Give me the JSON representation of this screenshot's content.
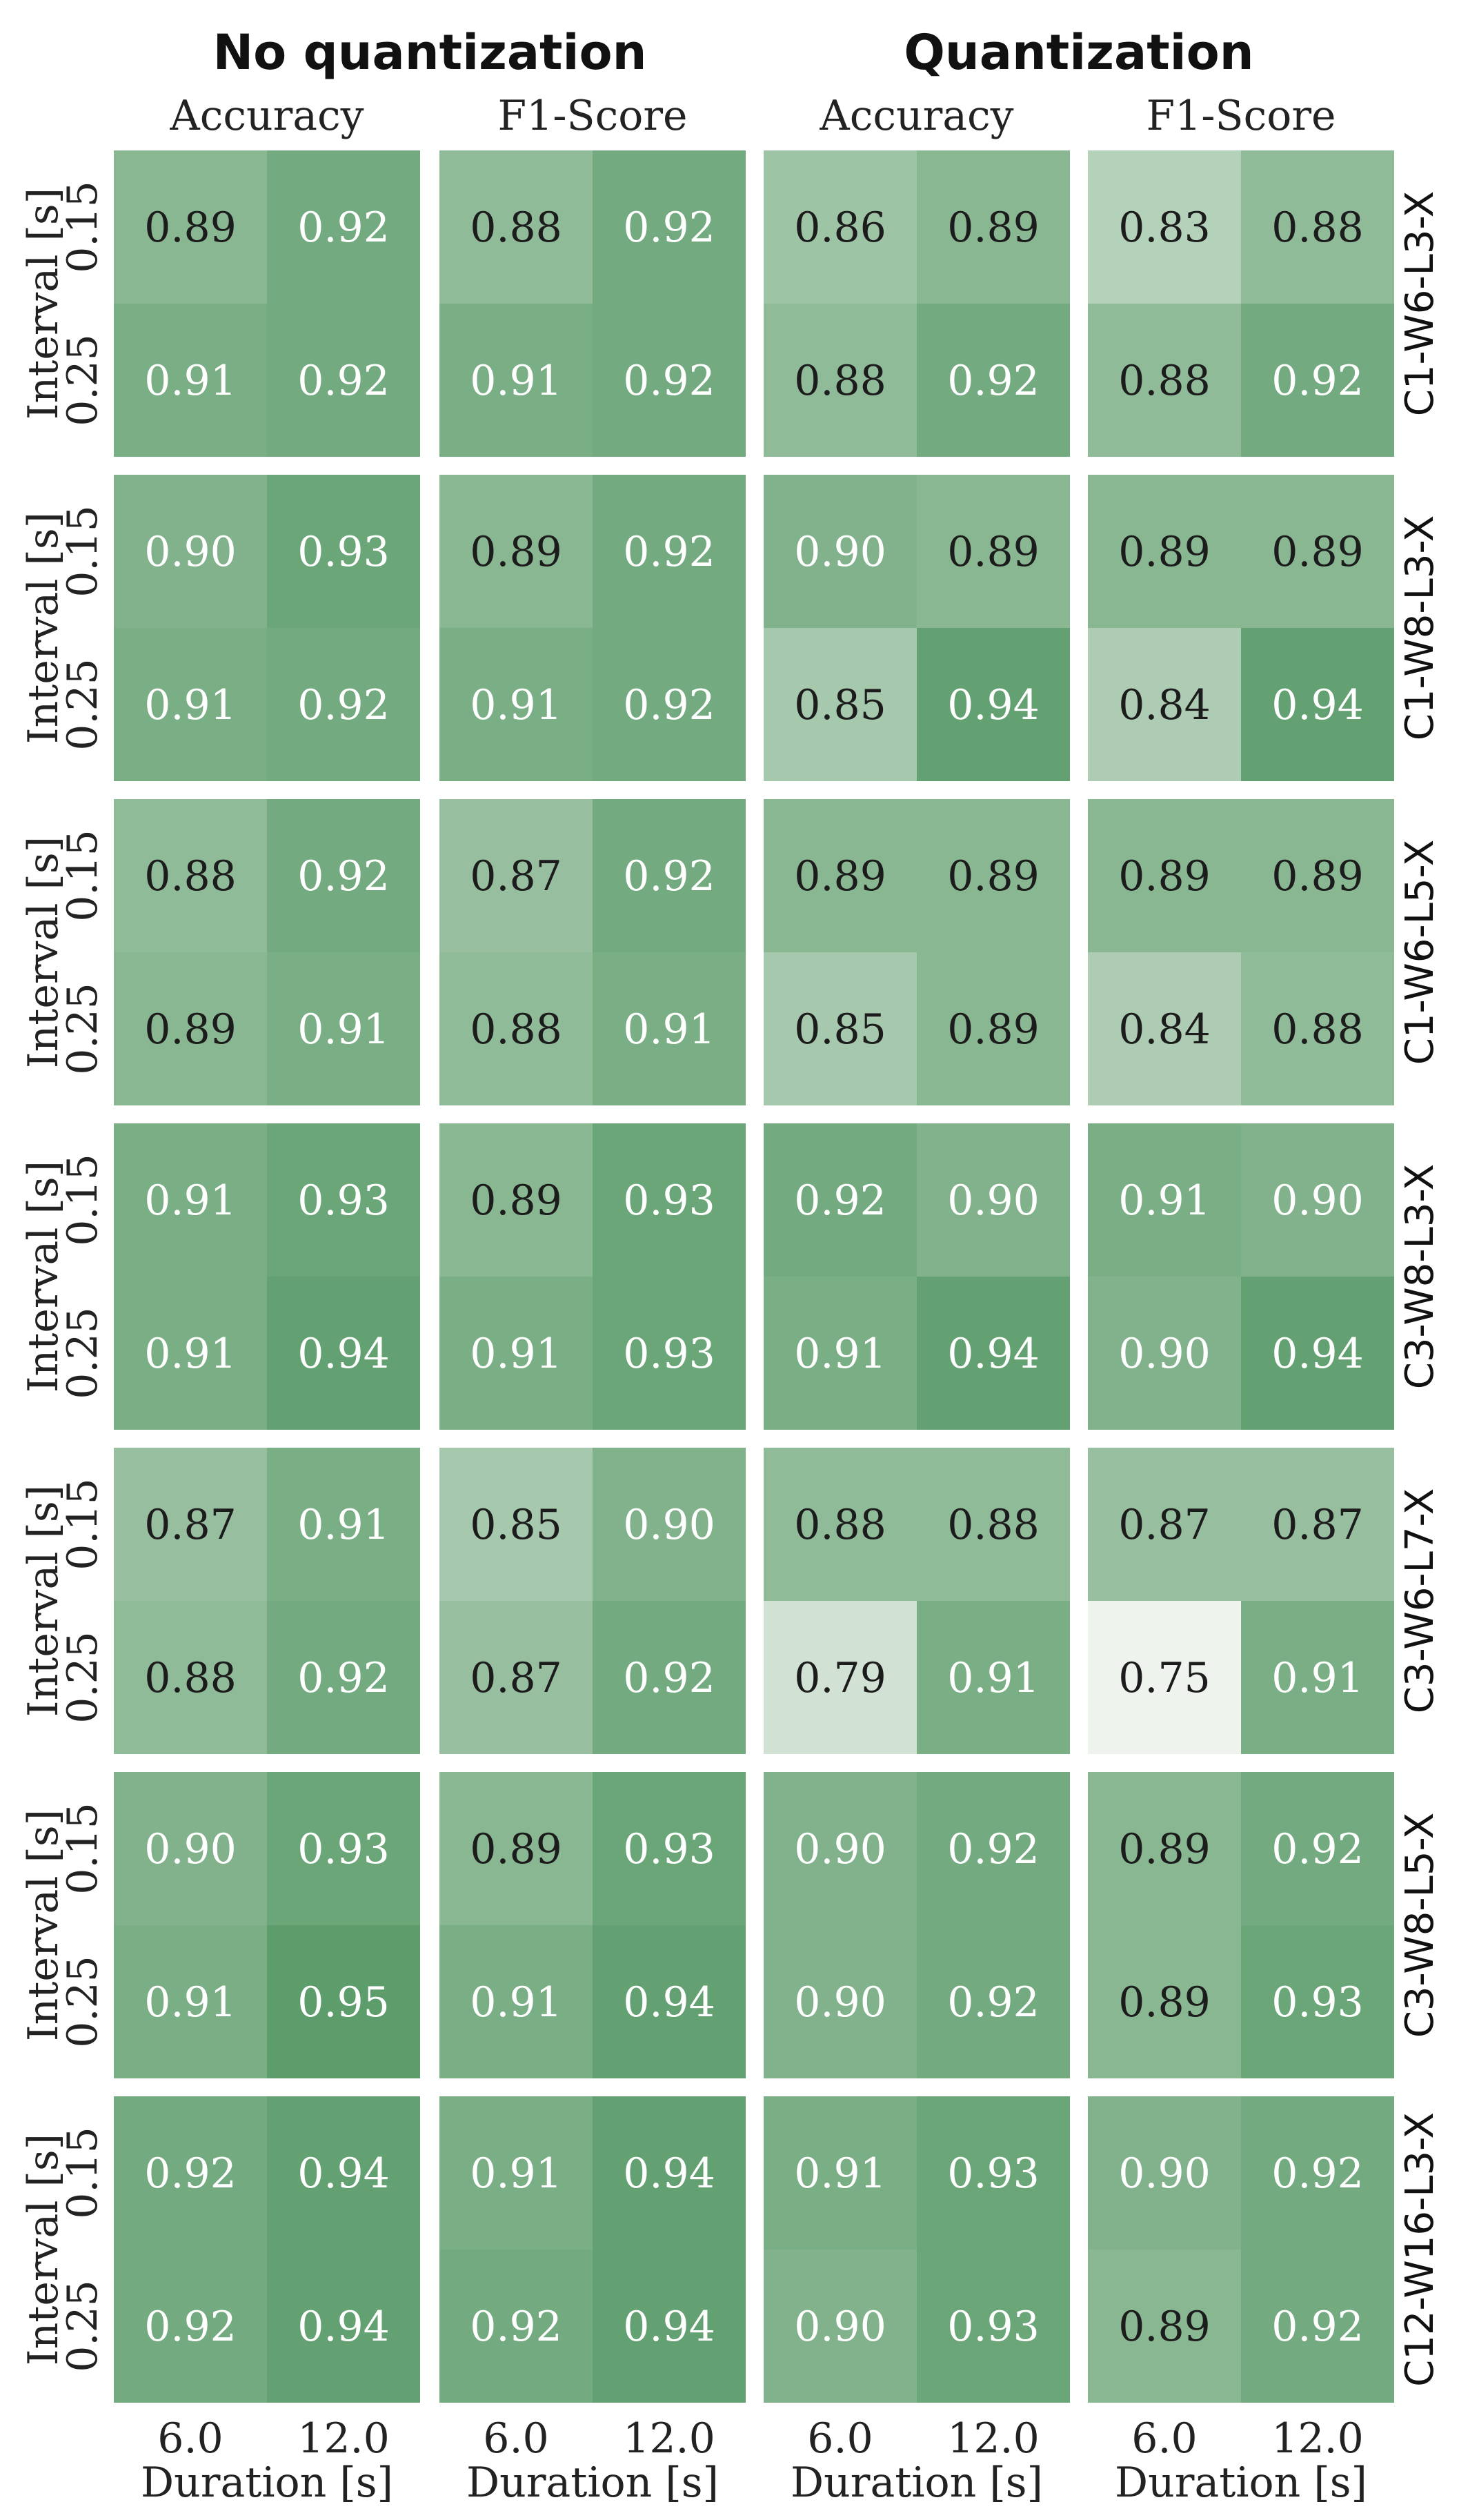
{
  "chart_data": {
    "type": "heatmap",
    "groups": [
      "No quantization",
      "Quantization"
    ],
    "metrics": [
      "Accuracy",
      "F1-Score"
    ],
    "xlabel": "Duration [s]",
    "ylabel": "Interval [s]",
    "x_ticks": [
      "6.0",
      "12.0"
    ],
    "y_ticks": [
      "0.15",
      "0.25"
    ],
    "colormap": {
      "low": "#eef3ee",
      "high": "#5d9d6b",
      "vmin": 0.75,
      "vmax": 0.95
    },
    "rows": [
      {
        "label": "C1-W6-L3-X",
        "panels": [
          [
            [
              "0.89",
              "0.92"
            ],
            [
              "0.91",
              "0.92"
            ]
          ],
          [
            [
              "0.88",
              "0.92"
            ],
            [
              "0.91",
              "0.92"
            ]
          ],
          [
            [
              "0.86",
              "0.89"
            ],
            [
              "0.88",
              "0.92"
            ]
          ],
          [
            [
              "0.83",
              "0.88"
            ],
            [
              "0.88",
              "0.92"
            ]
          ]
        ]
      },
      {
        "label": "C1-W8-L3-X",
        "panels": [
          [
            [
              "0.90",
              "0.93"
            ],
            [
              "0.91",
              "0.92"
            ]
          ],
          [
            [
              "0.89",
              "0.92"
            ],
            [
              "0.91",
              "0.92"
            ]
          ],
          [
            [
              "0.90",
              "0.89"
            ],
            [
              "0.85",
              "0.94"
            ]
          ],
          [
            [
              "0.89",
              "0.89"
            ],
            [
              "0.84",
              "0.94"
            ]
          ]
        ]
      },
      {
        "label": "C1-W6-L5-X",
        "panels": [
          [
            [
              "0.88",
              "0.92"
            ],
            [
              "0.89",
              "0.91"
            ]
          ],
          [
            [
              "0.87",
              "0.92"
            ],
            [
              "0.88",
              "0.91"
            ]
          ],
          [
            [
              "0.89",
              "0.89"
            ],
            [
              "0.85",
              "0.89"
            ]
          ],
          [
            [
              "0.89",
              "0.89"
            ],
            [
              "0.84",
              "0.88"
            ]
          ]
        ]
      },
      {
        "label": "C3-W8-L3-X",
        "panels": [
          [
            [
              "0.91",
              "0.93"
            ],
            [
              "0.91",
              "0.94"
            ]
          ],
          [
            [
              "0.89",
              "0.93"
            ],
            [
              "0.91",
              "0.93"
            ]
          ],
          [
            [
              "0.92",
              "0.90"
            ],
            [
              "0.91",
              "0.94"
            ]
          ],
          [
            [
              "0.91",
              "0.90"
            ],
            [
              "0.90",
              "0.94"
            ]
          ]
        ]
      },
      {
        "label": "C3-W6-L7-X",
        "panels": [
          [
            [
              "0.87",
              "0.91"
            ],
            [
              "0.88",
              "0.92"
            ]
          ],
          [
            [
              "0.85",
              "0.90"
            ],
            [
              "0.87",
              "0.92"
            ]
          ],
          [
            [
              "0.88",
              "0.88"
            ],
            [
              "0.79",
              "0.91"
            ]
          ],
          [
            [
              "0.87",
              "0.87"
            ],
            [
              "0.75",
              "0.91"
            ]
          ]
        ]
      },
      {
        "label": "C3-W8-L5-X",
        "panels": [
          [
            [
              "0.90",
              "0.93"
            ],
            [
              "0.91",
              "0.95"
            ]
          ],
          [
            [
              "0.89",
              "0.93"
            ],
            [
              "0.91",
              "0.94"
            ]
          ],
          [
            [
              "0.90",
              "0.92"
            ],
            [
              "0.90",
              "0.92"
            ]
          ],
          [
            [
              "0.89",
              "0.92"
            ],
            [
              "0.89",
              "0.93"
            ]
          ]
        ]
      },
      {
        "label": "C12-W16-L3-X",
        "panels": [
          [
            [
              "0.92",
              "0.94"
            ],
            [
              "0.92",
              "0.94"
            ]
          ],
          [
            [
              "0.91",
              "0.94"
            ],
            [
              "0.92",
              "0.94"
            ]
          ],
          [
            [
              "0.91",
              "0.93"
            ],
            [
              "0.90",
              "0.93"
            ]
          ],
          [
            [
              "0.90",
              "0.92"
            ],
            [
              "0.89",
              "0.92"
            ]
          ]
        ]
      }
    ]
  }
}
